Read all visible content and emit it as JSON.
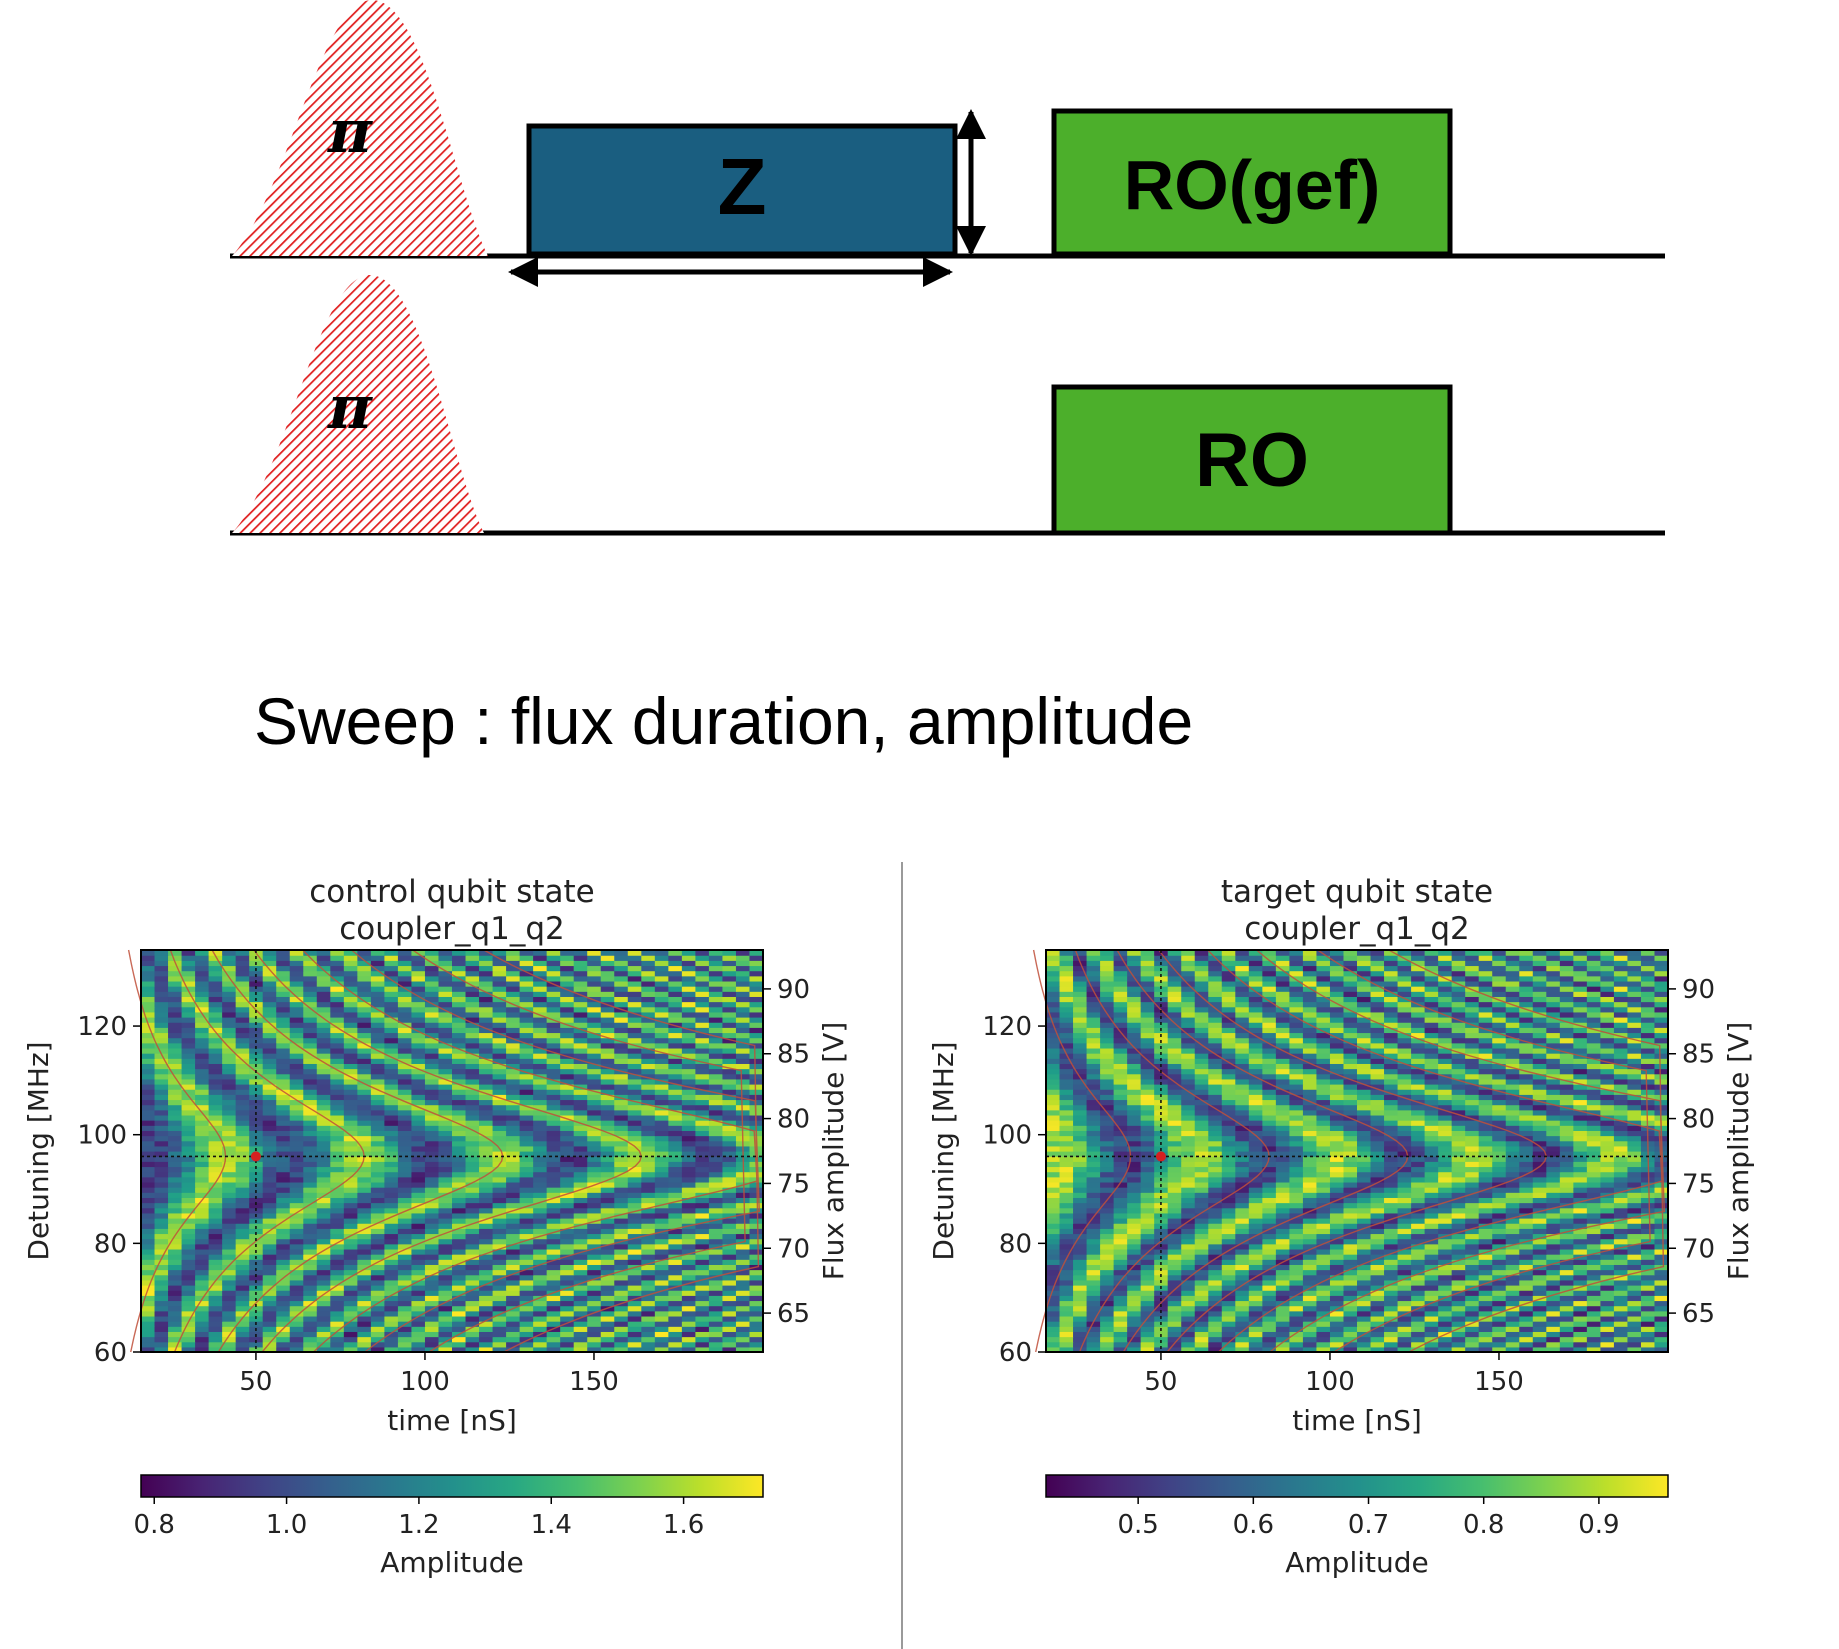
{
  "diagram": {
    "control_line": {
      "pi_label": "π",
      "z_label": "Z",
      "readout_label": "RO(gef)"
    },
    "target_line": {
      "pi_label": "π",
      "readout_label": "RO"
    },
    "colors": {
      "z_pulse": "#1a5e80",
      "readout": "#4caf2b",
      "pi_hatch": "#e02020"
    }
  },
  "sweep_caption": "Sweep : flux duration, amplitude",
  "chart_data": [
    {
      "type": "heatmap",
      "title": "control qubit state\ncoupler_q1_q2",
      "title_lines": [
        "control qubit state",
        "coupler_q1_q2"
      ],
      "xlabel": "time [nS]",
      "ylabel": "Detuning [MHz]",
      "y2label": "Flux amplitude [V]",
      "xlim": [
        16,
        200
      ],
      "ylim": [
        60,
        134
      ],
      "y2lim": [
        62,
        93
      ],
      "xticks": [
        50,
        100,
        150
      ],
      "yticks": [
        60,
        80,
        100,
        120
      ],
      "y2ticks": [
        65,
        70,
        75,
        80,
        85,
        90
      ],
      "colorbar": {
        "label": "Amplitude",
        "range": [
          0.78,
          1.72
        ],
        "ticks": [
          0.8,
          1.0,
          1.2,
          1.4,
          1.6
        ],
        "tick_labels": [
          "0.8",
          "1.0",
          "1.2",
          "1.4",
          "1.6"
        ]
      },
      "colormap": "viridis",
      "marker": {
        "x": 50,
        "y": 96
      },
      "crosshair": {
        "x": 50,
        "y": 96
      },
      "fringe_vertices_x": [
        41,
        82,
        123,
        164
      ],
      "phase": "bright_at_vertex"
    },
    {
      "type": "heatmap",
      "title": "target qubit state\ncoupler_q1_q2",
      "title_lines": [
        "target qubit state",
        "coupler_q1_q2"
      ],
      "xlabel": "time [nS]",
      "ylabel": "Detuning [MHz]",
      "y2label": "Flux amplitude [V]",
      "xlim": [
        16,
        200
      ],
      "ylim": [
        60,
        134
      ],
      "y2lim": [
        62,
        93
      ],
      "xticks": [
        50,
        100,
        150
      ],
      "yticks": [
        60,
        80,
        100,
        120
      ],
      "y2ticks": [
        65,
        70,
        75,
        80,
        85,
        90
      ],
      "colorbar": {
        "label": "Amplitude",
        "range": [
          0.42,
          0.96
        ],
        "ticks": [
          0.5,
          0.6,
          0.7,
          0.8,
          0.9
        ],
        "tick_labels": [
          "0.5",
          "0.6",
          "0.7",
          "0.8",
          "0.9"
        ]
      },
      "colormap": "viridis",
      "marker": {
        "x": 50,
        "y": 96
      },
      "crosshair": {
        "x": 50,
        "y": 96
      },
      "fringe_vertices_x": [
        41,
        82,
        123,
        164
      ],
      "phase": "dark_at_vertex"
    }
  ]
}
